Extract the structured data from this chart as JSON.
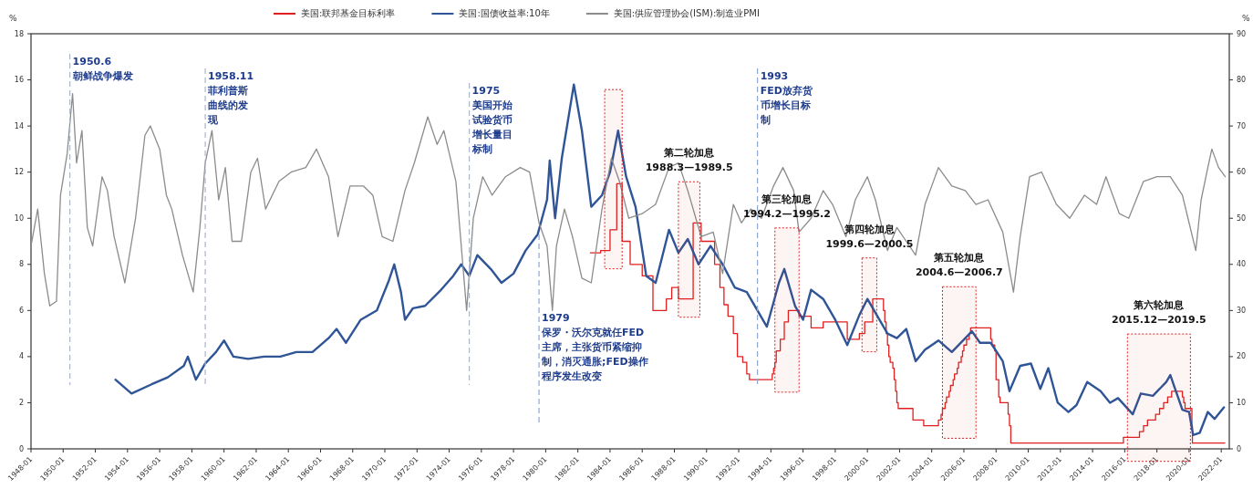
{
  "chart_data": {
    "type": "line",
    "ylabel": "%",
    "y2label": "%",
    "legend": "top",
    "grid": false,
    "xlim": [
      "1948-01",
      "2022-07"
    ],
    "ylim": [
      0,
      18
    ],
    "yticks": [
      0,
      2,
      4,
      6,
      8,
      10,
      12,
      14,
      16,
      18
    ],
    "y2lim": [
      0,
      90
    ],
    "y2ticks": [
      0,
      10,
      20,
      30,
      40,
      50,
      60,
      70,
      80,
      90
    ],
    "xticks": [
      "1948-01",
      "1950-01",
      "1952-01",
      "1954-01",
      "1956-01",
      "1958-01",
      "1960-01",
      "1962-01",
      "1964-01",
      "1966-01",
      "1968-01",
      "1970-01",
      "1972-01",
      "1974-01",
      "1976-01",
      "1978-01",
      "1980-01",
      "1982-01",
      "1984-01",
      "1986-01",
      "1988-01",
      "1990-01",
      "1992-01",
      "1994-01",
      "1996-01",
      "1998-01",
      "2000-01",
      "2002-01",
      "2004-01",
      "2006-01",
      "2008-01",
      "2010-01",
      "2012-01",
      "2014-01",
      "2016-01",
      "2018-01",
      "2020-01",
      "2022-01"
    ],
    "series": [
      {
        "name": "美国:联邦基金目标利率",
        "color": "#e02020",
        "type": "step",
        "x": [
          "1982-10",
          "1983-06",
          "1984-01",
          "1984-06",
          "1984-10",
          "1985-04",
          "1986-01",
          "1986-09",
          "1987-07",
          "1987-11",
          "1988-04",
          "1989-03",
          "1989-09",
          "1990-07",
          "1990-11",
          "1991-02",
          "1991-05",
          "1991-09",
          "1991-12",
          "1992-04",
          "1992-07",
          "1992-09",
          "1994-02",
          "1994-03",
          "1994-04",
          "1994-05",
          "1994-08",
          "1994-11",
          "1995-02",
          "1995-10",
          "1996-07",
          "1997-04",
          "1998-10",
          "1999-07",
          "1999-11",
          "2000-05",
          "2001-01",
          "2001-02",
          "2001-03",
          "2001-04",
          "2001-05",
          "2001-06",
          "2001-08",
          "2001-09",
          "2001-10",
          "2001-11",
          "2001-12",
          "2002-11",
          "2003-07",
          "2004-06",
          "2004-08",
          "2004-09",
          "2004-11",
          "2004-12",
          "2005-02",
          "2005-03",
          "2005-05",
          "2005-06",
          "2005-08",
          "2005-09",
          "2005-11",
          "2005-12",
          "2006-01",
          "2006-03",
          "2006-05",
          "2006-06",
          "2007-09",
          "2007-10",
          "2007-12",
          "2008-01",
          "2008-03",
          "2008-04",
          "2008-10",
          "2008-11",
          "2008-12",
          "2015-12",
          "2016-12",
          "2017-03",
          "2017-06",
          "2017-12",
          "2018-03",
          "2018-06",
          "2018-09",
          "2018-12",
          "2019-08",
          "2019-09",
          "2019-10",
          "2020-03-04",
          "2020-03-16",
          "2022-04"
        ],
        "values": [
          8.5,
          8.6,
          9.5,
          11.5,
          9.0,
          8.0,
          7.5,
          6.0,
          6.5,
          7.0,
          6.5,
          9.8,
          9.0,
          8.0,
          7.0,
          6.25,
          5.75,
          5.0,
          4.0,
          3.75,
          3.25,
          3.0,
          3.25,
          3.5,
          3.75,
          4.25,
          4.75,
          5.5,
          6.0,
          5.75,
          5.25,
          5.5,
          4.75,
          5.0,
          5.5,
          6.5,
          6.0,
          5.5,
          5.0,
          4.5,
          4.0,
          3.75,
          3.5,
          3.0,
          2.5,
          2.0,
          1.75,
          1.25,
          1.0,
          1.25,
          1.5,
          1.75,
          2.0,
          2.25,
          2.5,
          2.75,
          3.0,
          3.25,
          3.5,
          3.75,
          4.0,
          4.25,
          4.5,
          4.75,
          5.0,
          5.25,
          4.75,
          4.5,
          4.25,
          3.0,
          2.25,
          2.0,
          1.5,
          1.0,
          0.25,
          0.5,
          0.75,
          1.0,
          1.25,
          1.5,
          1.75,
          2.0,
          2.25,
          2.5,
          2.25,
          2.0,
          1.75,
          1.0,
          0.25,
          0.25
        ]
      },
      {
        "name": "美国:国债收益率:10年",
        "color": "#2f5597",
        "x": [
          "1953-04",
          "1954-04",
          "1955-07",
          "1956-07",
          "1957-07",
          "1957-10",
          "1958-04",
          "1958-11",
          "1959-07",
          "1960-01",
          "1960-08",
          "1961-07",
          "1962-07",
          "1963-07",
          "1964-07",
          "1965-07",
          "1966-07",
          "1967-01",
          "1967-08",
          "1968-07",
          "1969-07",
          "1970-04",
          "1970-08",
          "1971-01",
          "1971-04",
          "1971-10",
          "1972-07",
          "1973-07",
          "1974-04",
          "1974-10",
          "1975-04",
          "1975-10",
          "1976-08",
          "1977-04",
          "1978-01",
          "1978-10",
          "1979-07",
          "1980-02",
          "1980-04",
          "1980-08",
          "1981-01",
          "1981-10",
          "1982-04",
          "1982-11",
          "1983-07",
          "1984-01",
          "1984-07",
          "1985-01",
          "1985-08",
          "1986-04",
          "1986-11",
          "1987-09",
          "1988-04",
          "1988-11",
          "1989-07",
          "1990-04",
          "1991-01",
          "1991-10",
          "1992-07",
          "1993-03",
          "1993-10",
          "1994-07",
          "1994-11",
          "1995-07",
          "1996-01",
          "1996-07",
          "1997-04",
          "1998-01",
          "1998-10",
          "1999-07",
          "2000-01",
          "2000-08",
          "2001-04",
          "2001-11",
          "2002-06",
          "2003-01",
          "2003-08",
          "2004-06",
          "2005-04",
          "2006-07",
          "2007-01",
          "2007-09",
          "2008-06",
          "2008-11",
          "2009-07",
          "2010-03",
          "2010-10",
          "2011-04",
          "2011-11",
          "2012-07",
          "2013-01",
          "2013-09",
          "2014-07",
          "2015-02",
          "2015-08",
          "2016-07",
          "2017-01",
          "2017-10",
          "2018-08",
          "2018-11",
          "2019-08",
          "2020-01",
          "2020-04",
          "2020-09",
          "2021-03",
          "2021-08",
          "2022-03"
        ],
        "values": [
          3.0,
          2.4,
          2.8,
          3.1,
          3.6,
          4.0,
          3.0,
          3.7,
          4.2,
          4.7,
          4.0,
          3.9,
          4.0,
          4.0,
          4.2,
          4.2,
          4.8,
          5.2,
          4.6,
          5.6,
          6.0,
          7.3,
          8.0,
          6.8,
          5.6,
          6.1,
          6.2,
          6.9,
          7.5,
          8.0,
          7.5,
          8.4,
          7.8,
          7.2,
          7.6,
          8.6,
          9.3,
          10.8,
          12.5,
          10.0,
          12.6,
          15.8,
          13.8,
          10.5,
          11.0,
          12.0,
          13.8,
          11.8,
          10.5,
          7.5,
          7.2,
          9.5,
          8.5,
          9.1,
          8.0,
          8.8,
          8.0,
          7.0,
          6.8,
          6.0,
          5.3,
          7.2,
          7.8,
          6.2,
          5.6,
          6.9,
          6.5,
          5.6,
          4.5,
          5.8,
          6.5,
          5.8,
          5.0,
          4.8,
          5.2,
          3.8,
          4.3,
          4.7,
          4.2,
          5.1,
          4.6,
          4.6,
          3.8,
          2.5,
          3.6,
          3.7,
          2.6,
          3.5,
          2.0,
          1.6,
          1.9,
          2.9,
          2.5,
          2.0,
          2.2,
          1.5,
          2.4,
          2.3,
          2.9,
          3.2,
          1.7,
          1.6,
          0.6,
          0.7,
          1.6,
          1.3,
          1.8
        ]
      },
      {
        "name": "美国:供应管理协会(ISM):制造业PMI",
        "color": "#8c8c8c",
        "axis": "y2",
        "x": [
          "1948-01",
          "1948-06",
          "1948-11",
          "1949-03",
          "1949-08",
          "1949-11",
          "1950-04",
          "1950-08",
          "1950-11",
          "1951-03",
          "1951-07",
          "1951-11",
          "1952-06",
          "1952-10",
          "1953-03",
          "1953-11",
          "1954-07",
          "1955-02",
          "1955-06",
          "1956-01",
          "1956-06",
          "1956-10",
          "1957-06",
          "1958-02",
          "1958-07",
          "1958-11",
          "1959-04",
          "1959-09",
          "1960-02",
          "1960-07",
          "1961-02",
          "1961-09",
          "1962-02",
          "1962-08",
          "1963-06",
          "1964-03",
          "1965-02",
          "1965-10",
          "1966-07",
          "1967-02",
          "1967-11",
          "1968-09",
          "1969-04",
          "1969-11",
          "1970-07",
          "1971-04",
          "1971-11",
          "1972-09",
          "1973-04",
          "1973-09",
          "1974-06",
          "1975-02",
          "1975-07",
          "1976-02",
          "1976-09",
          "1977-07",
          "1978-06",
          "1979-01",
          "1979-08",
          "1980-02",
          "1980-06",
          "1980-09",
          "1981-03",
          "1981-09",
          "1982-04",
          "1982-11",
          "1983-07",
          "1984-02",
          "1984-08",
          "1985-03",
          "1986-01",
          "1986-11",
          "1987-09",
          "1988-04",
          "1988-11",
          "1989-09",
          "1990-06",
          "1991-01",
          "1991-09",
          "1992-03",
          "1992-10",
          "1993-06",
          "1994-03",
          "1994-10",
          "1995-06",
          "1995-10",
          "1996-07",
          "1997-04",
          "1997-11",
          "1998-09",
          "1999-04",
          "2000-01",
          "2000-07",
          "2001-04",
          "2001-11",
          "2002-06",
          "2003-01",
          "2003-08",
          "2004-06",
          "2005-04",
          "2006-02",
          "2006-10",
          "2007-07",
          "2008-06",
          "2009-02",
          "2009-07",
          "2010-02",
          "2010-11",
          "2011-10",
          "2012-08",
          "2013-07",
          "2014-04",
          "2014-11",
          "2015-09",
          "2016-04",
          "2017-03",
          "2018-01",
          "2018-11",
          "2019-08",
          "2020-01",
          "2020-06",
          "2020-10",
          "2021-03",
          "2021-06",
          "2021-11",
          "2022-04"
        ],
        "values": [
          44,
          52,
          38,
          31,
          32,
          55,
          64,
          77,
          62,
          69,
          48,
          44,
          59,
          56,
          46,
          36,
          50,
          68,
          70,
          65,
          55,
          52,
          42,
          34,
          48,
          62,
          69,
          54,
          61,
          45,
          45,
          60,
          63,
          52,
          58,
          60,
          61,
          65,
          59,
          46,
          57,
          57,
          55,
          46,
          45,
          56,
          62,
          72,
          66,
          69,
          58,
          30,
          50,
          59,
          55,
          59,
          61,
          60,
          49,
          44,
          30,
          44,
          52,
          46,
          37,
          36,
          52,
          63,
          58,
          50,
          51,
          53,
          61,
          62,
          56,
          46,
          47,
          38,
          53,
          49,
          52,
          50,
          57,
          61,
          56,
          47,
          50,
          56,
          53,
          46,
          54,
          59,
          54,
          43,
          48,
          45,
          42,
          53,
          61,
          57,
          56,
          53,
          54,
          47,
          34,
          46,
          59,
          60,
          53,
          50,
          55,
          53,
          59,
          51,
          50,
          58,
          59,
          59,
          55,
          49,
          43,
          54,
          61,
          65,
          61,
          59
        ]
      }
    ],
    "ref_lines": [
      {
        "axis": "x",
        "value": "1950-06",
        "label": "1950.6\n朝鲜战争爆发",
        "color": "#a9b6cc",
        "line_style": "dashed"
      },
      {
        "axis": "x",
        "value": "1958-11",
        "label": "1958.11\n菲利普斯曲线的发现",
        "color": "#a9b6cc",
        "line_style": "dashed"
      },
      {
        "axis": "x",
        "value": "1975-04",
        "label": "1975\n美国开始试验货币增长量目标制",
        "color": "#a9b6cc",
        "line_style": "dashed"
      },
      {
        "axis": "x",
        "value": "1979-08",
        "label": "1979\n保罗・沃尔克就任FED主席，主张货币紧缩抑制，消灭通胀;FED操作程序发生改变",
        "color": "#8fa6cf",
        "line_style": "dashed"
      },
      {
        "axis": "x",
        "value": "1993-03",
        "label": "1993\nFED放弃货币增长目标制",
        "color": "#8fa6cf",
        "line_style": "dashed"
      }
    ],
    "bands": [
      {
        "axis": "x",
        "from": "1983-09",
        "to": "1984-10",
        "color": "#e02020"
      },
      {
        "axis": "x",
        "from": "1988-04",
        "to": "1989-08",
        "label": "第二轮加息\n1988.3—1989.5",
        "color": "#e02020"
      },
      {
        "axis": "x",
        "from": "1994-04",
        "to": "1995-10",
        "label": "第三轮加息\n1994.2—1995.2",
        "color": "#e02020"
      },
      {
        "axis": "x",
        "from": "1999-09",
        "to": "2000-08",
        "label": "第四轮加息\n1999.6—2000.5",
        "color": "#e02020"
      },
      {
        "axis": "x",
        "from": "2004-09",
        "to": "2006-10",
        "label": "第五轮加息\n2004.6—2006.7",
        "color": "#e02020"
      },
      {
        "axis": "x",
        "from": "2016-03",
        "to": "2020-02",
        "label": "第六轮加息\n2015.12—2019.5",
        "color": "#e02020"
      }
    ]
  }
}
